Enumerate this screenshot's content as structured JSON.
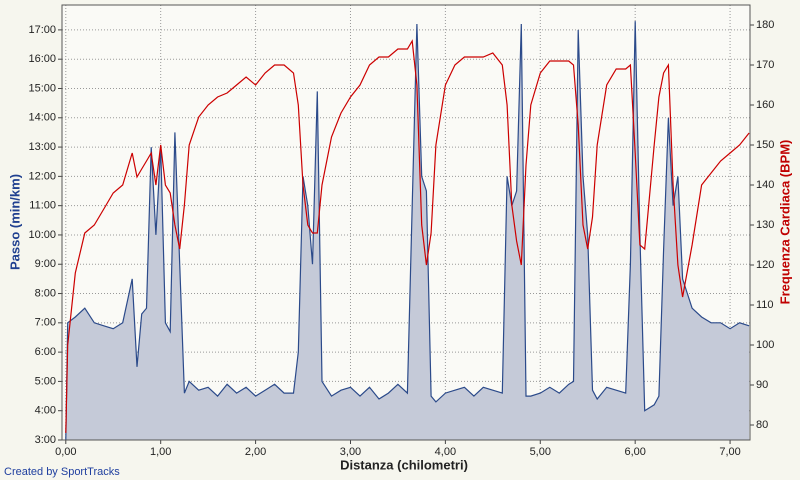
{
  "chart_data": {
    "type": "line",
    "xlabel": "Distanza (chilometri)",
    "ylabel": "Passo (min/km)",
    "y2label": "Frequenza Cardiaca (BPM)",
    "footer": "Created by SportTracks",
    "grid": true,
    "xlim": [
      -0.04,
      7.21
    ],
    "ylim": [
      3,
      17.85
    ],
    "y2lim": [
      76.25,
      185
    ],
    "xticks": [
      {
        "value": 0,
        "label": "0,00"
      },
      {
        "value": 1,
        "label": "1,00"
      },
      {
        "value": 2,
        "label": "2,00"
      },
      {
        "value": 3,
        "label": "3,00"
      },
      {
        "value": 4,
        "label": "4,00"
      },
      {
        "value": 5,
        "label": "5,00"
      },
      {
        "value": 6,
        "label": "6,00"
      },
      {
        "value": 7,
        "label": "7,00"
      }
    ],
    "yticks": [
      {
        "value": 3,
        "label": "3:00"
      },
      {
        "value": 4,
        "label": "4:00"
      },
      {
        "value": 5,
        "label": "5:00"
      },
      {
        "value": 6,
        "label": "6:00"
      },
      {
        "value": 7,
        "label": "7:00"
      },
      {
        "value": 8,
        "label": "8:00"
      },
      {
        "value": 9,
        "label": "9:00"
      },
      {
        "value": 10,
        "label": "10:00"
      },
      {
        "value": 11,
        "label": "11:00"
      },
      {
        "value": 12,
        "label": "12:00"
      },
      {
        "value": 13,
        "label": "13:00"
      },
      {
        "value": 14,
        "label": "14:00"
      },
      {
        "value": 15,
        "label": "15:00"
      },
      {
        "value": 16,
        "label": "16:00"
      },
      {
        "value": 17,
        "label": "17:00"
      }
    ],
    "y2ticks": [
      80,
      90,
      100,
      110,
      120,
      130,
      140,
      150,
      160,
      170,
      180
    ],
    "x": [
      0,
      0.02,
      0.1,
      0.2,
      0.3,
      0.4,
      0.5,
      0.6,
      0.7,
      0.75,
      0.8,
      0.85,
      0.9,
      0.95,
      1.0,
      1.05,
      1.1,
      1.15,
      1.2,
      1.25,
      1.3,
      1.4,
      1.5,
      1.6,
      1.7,
      1.8,
      1.9,
      2.0,
      2.1,
      2.2,
      2.3,
      2.4,
      2.45,
      2.5,
      2.55,
      2.6,
      2.65,
      2.7,
      2.8,
      2.9,
      3.0,
      3.1,
      3.2,
      3.3,
      3.4,
      3.5,
      3.6,
      3.65,
      3.7,
      3.75,
      3.8,
      3.85,
      3.9,
      4.0,
      4.1,
      4.2,
      4.3,
      4.4,
      4.5,
      4.6,
      4.65,
      4.7,
      4.75,
      4.8,
      4.85,
      4.9,
      5.0,
      5.1,
      5.2,
      5.3,
      5.35,
      5.4,
      5.45,
      5.5,
      5.55,
      5.6,
      5.7,
      5.8,
      5.9,
      5.95,
      6.0,
      6.05,
      6.1,
      6.2,
      6.25,
      6.3,
      6.35,
      6.4,
      6.45,
      6.5,
      6.6,
      6.7,
      6.8,
      6.9,
      7.0,
      7.1,
      7.2
    ],
    "series": [
      {
        "color": "#2b4a8a",
        "fill": "#c5cad8",
        "values": [
          3.0,
          7.0,
          7.2,
          7.5,
          7.0,
          6.9,
          6.8,
          7.0,
          8.5,
          5.5,
          7.3,
          7.5,
          13.0,
          10.0,
          13.0,
          7.0,
          6.7,
          13.5,
          9.0,
          4.6,
          5.0,
          4.7,
          4.8,
          4.5,
          4.9,
          4.6,
          4.8,
          4.5,
          4.7,
          4.9,
          4.6,
          4.6,
          6.0,
          12.0,
          11.0,
          9.0,
          14.9,
          5.0,
          4.5,
          4.7,
          4.8,
          4.5,
          4.8,
          4.4,
          4.6,
          4.9,
          4.6,
          11.0,
          17.2,
          12.0,
          11.5,
          4.5,
          4.3,
          4.6,
          4.7,
          4.8,
          4.5,
          4.8,
          4.7,
          4.6,
          12.0,
          11.0,
          11.5,
          17.2,
          4.5,
          4.5,
          4.6,
          4.8,
          4.6,
          4.9,
          5.0,
          17.0,
          12.0,
          10.0,
          4.7,
          4.4,
          4.8,
          4.7,
          4.6,
          9.0,
          17.3,
          10.0,
          4.0,
          4.2,
          4.5,
          9.5,
          14.0,
          11.0,
          12.0,
          8.5,
          7.5,
          7.2,
          7.0,
          7.0,
          6.8,
          7.0,
          6.9
        ]
      },
      {
        "color": "#cc0000",
        "axis": "y2",
        "values": [
          78,
          100,
          118,
          128,
          130,
          134,
          138,
          140,
          148,
          142,
          144,
          146,
          148,
          140,
          150,
          140,
          138,
          130,
          124,
          135,
          150,
          157,
          160,
          162,
          163,
          165,
          167,
          165,
          168,
          170,
          170,
          168,
          160,
          140,
          130,
          128,
          128,
          140,
          152,
          158,
          162,
          165,
          170,
          172,
          172,
          174,
          174,
          176,
          165,
          130,
          120,
          128,
          150,
          165,
          170,
          172,
          172,
          172,
          173,
          170,
          160,
          135,
          126,
          120,
          145,
          160,
          168,
          171,
          171,
          171,
          170,
          155,
          130,
          124,
          132,
          150,
          165,
          169,
          169,
          170,
          148,
          125,
          124,
          150,
          162,
          168,
          170,
          140,
          120,
          112,
          125,
          140,
          143,
          146,
          148,
          150,
          153
        ]
      }
    ]
  }
}
